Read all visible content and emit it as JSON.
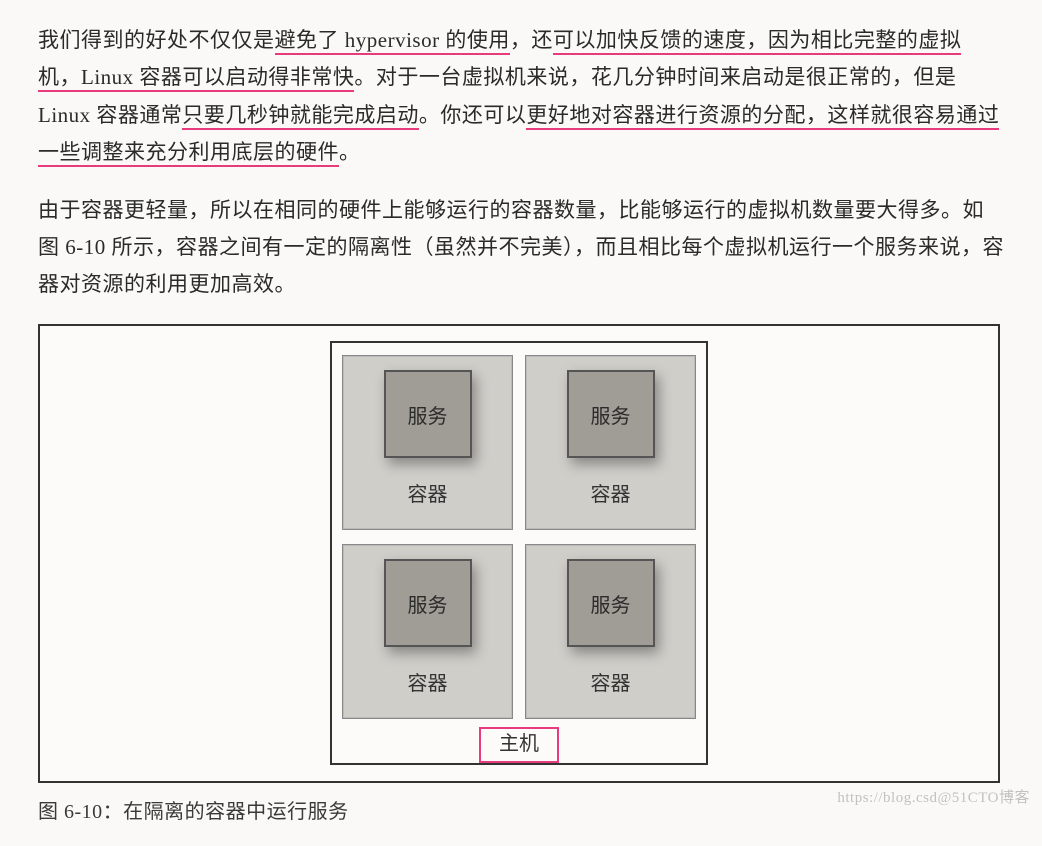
{
  "paragraphs": {
    "p1": {
      "seg1": "我们得到的好处不仅仅是",
      "u1": "避免了 hypervisor 的使用",
      "seg2": "，还",
      "u2": "可以加快反馈的速度，因为相比完整的虚拟机，Linux 容器可以启动得非常快",
      "seg3": "。对于一台虚拟机来说，花几分钟时间来启动是很正常的，但是 Linux 容器通常",
      "u3": "只要几秒钟就能完成启动",
      "seg4": "。你还可以",
      "u4": "更好地对容器进行资源的分配，这样就很容易通过一些调整来充分利用底层的硬件",
      "seg5": "。"
    },
    "p2": "由于容器更轻量，所以在相同的硬件上能够运行的容器数量，比能够运行的虚拟机数量要大得多。如图 6-10 所示，容器之间有一定的隔离性（虽然并不完美），而且相比每个虚拟机运行一个服务来说，容器对资源的利用更加高效。"
  },
  "figure": {
    "type": "diagram",
    "layout": "2x2-grid-in-host",
    "colors": {
      "page_bg": "#faf9f7",
      "box_border": "#333333",
      "container_bg": "#d0cec9",
      "service_bg": "#a09d96",
      "service_border": "#555555",
      "highlight": "#e83b7d",
      "text": "#2a2a2a"
    },
    "cells": [
      {
        "service": "服务",
        "container": "容器"
      },
      {
        "service": "服务",
        "container": "容器"
      },
      {
        "service": "服务",
        "container": "容器"
      },
      {
        "service": "服务",
        "container": "容器"
      }
    ],
    "host_label": "主机",
    "caption": "图 6-10：在隔离的容器中运行服务"
  },
  "watermark": "https://blog.csd@51CTO博客"
}
